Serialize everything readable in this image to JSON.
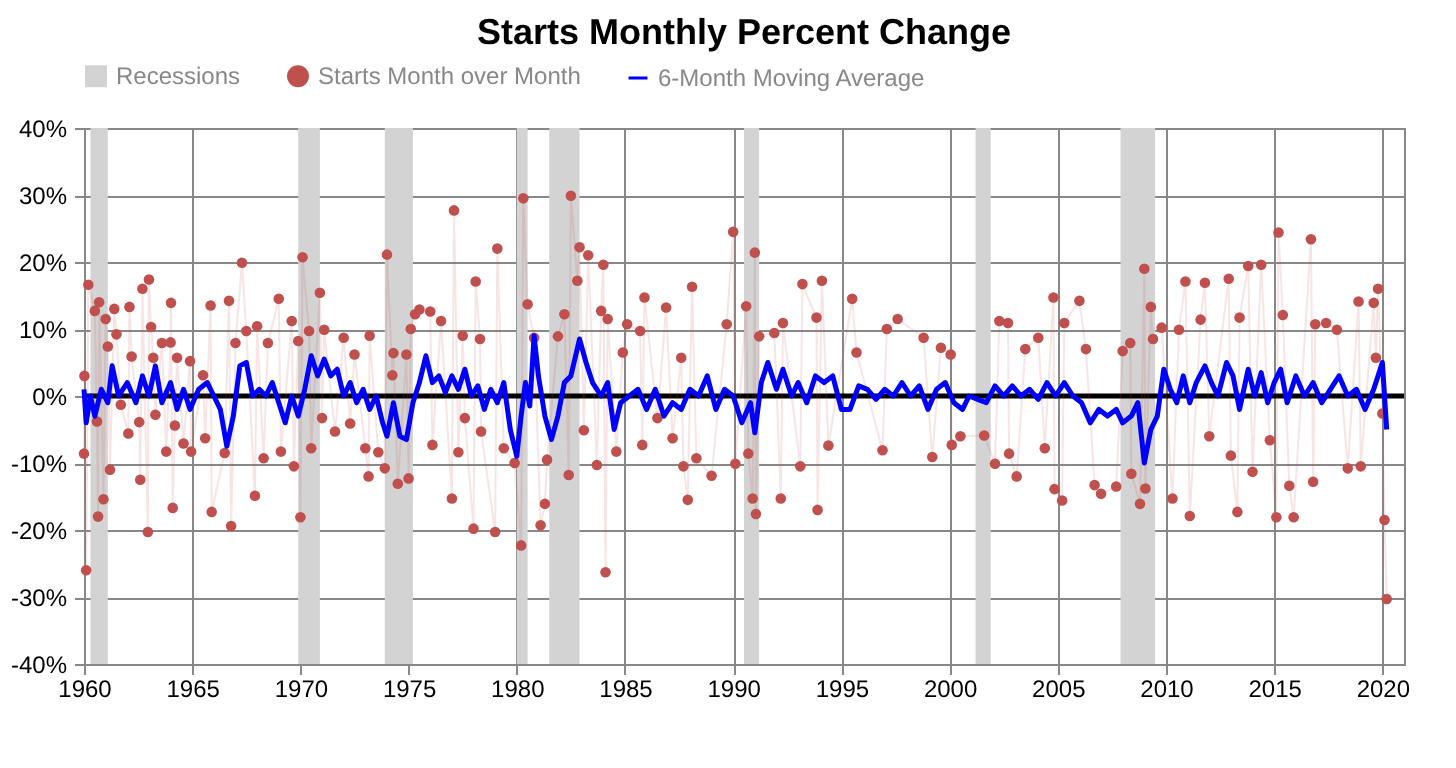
{
  "chart_data": {
    "type": "line",
    "title": "Starts Monthly Percent Change",
    "xlim": [
      1960,
      2021
    ],
    "xticks": [
      1960,
      1965,
      1970,
      1975,
      1980,
      1985,
      1990,
      1995,
      2000,
      2005,
      2010,
      2015,
      2020
    ],
    "ylim": [
      -40,
      40
    ],
    "yticks": [
      {
        "value": -40,
        "label": "-40%"
      },
      {
        "value": -30,
        "label": "-30%"
      },
      {
        "value": -20,
        "label": "-20%"
      },
      {
        "value": -10,
        "label": "-10%"
      },
      {
        "value": 0,
        "label": "0%"
      },
      {
        "value": 10,
        "label": "10%"
      },
      {
        "value": 20,
        "label": "20%"
      },
      {
        "value": 30,
        "label": "30%"
      },
      {
        "value": 40,
        "label": "40%"
      }
    ],
    "grid": true,
    "legend": "top",
    "bands": [
      {
        "axis": "x",
        "from": 1960.3,
        "to": 1961.1,
        "label": "Recessions",
        "color": "#d3d3d3"
      },
      {
        "axis": "x",
        "from": 1969.9,
        "to": 1970.9,
        "color": "#d3d3d3"
      },
      {
        "axis": "x",
        "from": 1973.9,
        "to": 1975.2,
        "color": "#d3d3d3"
      },
      {
        "axis": "x",
        "from": 1980.0,
        "to": 1980.5,
        "color": "#d3d3d3"
      },
      {
        "axis": "x",
        "from": 1981.5,
        "to": 1982.9,
        "color": "#d3d3d3"
      },
      {
        "axis": "x",
        "from": 1990.5,
        "to": 1991.2,
        "color": "#d3d3d3"
      },
      {
        "axis": "x",
        "from": 2001.2,
        "to": 2001.9,
        "color": "#d3d3d3"
      },
      {
        "axis": "x",
        "from": 2007.9,
        "to": 2009.5,
        "color": "#d3d3d3"
      }
    ],
    "ref_lines": [
      {
        "axis": "y",
        "value": 0,
        "color": "#000000"
      }
    ],
    "series": [
      {
        "name": "Starts Month over Month",
        "marker": "circle",
        "color": "#c0504d",
        "x": [
          1960.0,
          1960.02,
          1960.1,
          1960.2,
          1960.5,
          1960.6,
          1960.65,
          1960.7,
          1960.9,
          1961.0,
          1961.1,
          1961.2,
          1961.4,
          1961.5,
          1961.7,
          1962.05,
          1962.1,
          1962.2,
          1962.55,
          1962.6,
          1962.7,
          1962.95,
          1963.0,
          1963.1,
          1963.2,
          1963.3,
          1963.6,
          1963.8,
          1964.0,
          1964.02,
          1964.1,
          1964.2,
          1964.3,
          1964.6,
          1964.9,
          1964.95,
          1965.5,
          1965.6,
          1965.85,
          1965.9,
          1966.5,
          1966.7,
          1966.8,
          1967.0,
          1967.3,
          1967.5,
          1967.9,
          1968.0,
          1968.3,
          1968.5,
          1969.0,
          1969.1,
          1969.6,
          1969.7,
          1969.9,
          1970.0,
          1970.1,
          1970.4,
          1970.5,
          1970.9,
          1971.0,
          1971.1,
          1971.6,
          1972.0,
          1972.3,
          1972.5,
          1973.0,
          1973.15,
          1973.2,
          1973.6,
          1973.9,
          1974.0,
          1974.25,
          1974.3,
          1974.5,
          1974.9,
          1975.0,
          1975.1,
          1975.3,
          1975.5,
          1976.0,
          1976.1,
          1976.5,
          1977.0,
          1977.1,
          1977.3,
          1977.5,
          1977.6,
          1978.0,
          1978.1,
          1978.3,
          1978.35,
          1979.0,
          1979.1,
          1979.4,
          1979.9,
          1980.2,
          1980.3,
          1980.5,
          1980.8,
          1981.1,
          1981.3,
          1981.4,
          1981.9,
          1982.2,
          1982.4,
          1982.5,
          1982.8,
          1982.9,
          1983.1,
          1983.3,
          1983.7,
          1983.9,
          1984.0,
          1984.1,
          1984.2,
          1984.6,
          1984.9,
          1985.1,
          1985.7,
          1985.8,
          1985.9,
          1986.5,
          1986.9,
          1987.2,
          1987.6,
          1987.7,
          1987.9,
          1988.1,
          1988.3,
          1989.0,
          1989.7,
          1990.0,
          1990.1,
          1990.6,
          1990.7,
          1990.9,
          1991.0,
          1991.05,
          1991.2,
          1991.9,
          1992.2,
          1992.3,
          1993.1,
          1993.2,
          1993.85,
          1993.9,
          1994.1,
          1994.4,
          1995.5,
          1995.7,
          1996.9,
          1997.1,
          1997.6,
          1998.8,
          1999.2,
          1999.6,
          2000.05,
          2000.1,
          2000.5,
          2001.6,
          2002.1,
          2002.3,
          2002.7,
          2002.75,
          2003.1,
          2003.5,
          2004.1,
          2004.4,
          2004.8,
          2004.85,
          2005.2,
          2005.3,
          2006.0,
          2006.3,
          2006.7,
          2007.0,
          2007.7,
          2008.0,
          2008.35,
          2008.4,
          2008.8,
          2009.0,
          2009.05,
          2009.3,
          2009.4,
          2009.8,
          2010.3,
          2010.6,
          2010.9,
          2011.1,
          2011.6,
          2011.8,
          2012.0,
          2012.9,
          2013.0,
          2013.3,
          2013.4,
          2013.8,
          2014.0,
          2014.4,
          2014.8,
          2015.1,
          2015.2,
          2015.4,
          2015.7,
          2015.9,
          2016.7,
          2016.8,
          2016.9,
          2017.4,
          2017.9,
          2018.4,
          2018.9,
          2019.0,
          2019.6,
          2019.7,
          2019.8,
          2020.0,
          2020.1,
          2020.2
        ],
        "values": [
          -8.6,
          3,
          -26,
          16.6,
          12.7,
          -3.8,
          -18,
          14,
          -15.4,
          11.5,
          7.4,
          -11,
          13,
          9.2,
          -1.3,
          -5.6,
          13.3,
          5.9,
          -3.9,
          -12.5,
          16,
          -20.3,
          17.4,
          10.3,
          5.7,
          -2.8,
          7.9,
          -8.3,
          8,
          13.9,
          -16.7,
          -4.4,
          5.7,
          -7.1,
          5.2,
          -8.3,
          3.1,
          -6.3,
          13.5,
          -17.3,
          -8.5,
          14.2,
          -19.4,
          7.9,
          19.9,
          9.7,
          -14.9,
          10.4,
          -9.3,
          7.9,
          14.5,
          -8.3,
          11.2,
          -10.5,
          8.2,
          -18.1,
          20.7,
          9.7,
          -7.8,
          15.4,
          -3.3,
          9.9,
          -5.3,
          8.7,
          -4.1,
          6.2,
          -7.8,
          -12,
          9,
          -8.4,
          -10.8,
          21.1,
          3.1,
          6.4,
          -13.1,
          6.2,
          -12.3,
          10,
          12.2,
          12.9,
          12.6,
          -7.3,
          11.2,
          -15.3,
          27.7,
          -8.4,
          9,
          -3.3,
          -19.8,
          17.1,
          8.5,
          -5.3,
          -20.3,
          22,
          -7.8,
          -10,
          -22.3,
          29.5,
          13.7,
          8.7,
          -19.3,
          -16.1,
          -9.5,
          8.9,
          12.2,
          -11.8,
          29.9,
          17.2,
          22.2,
          -5.1,
          21,
          -10.3,
          12.7,
          19.6,
          -26.3,
          11.5,
          -8.3,
          6.5,
          10.7,
          9.7,
          -7.3,
          14.7,
          -3.3,
          13.2,
          -6.3,
          5.7,
          -10.5,
          -15.5,
          16.3,
          -9.3,
          -11.9,
          10.7,
          24.5,
          -10.1,
          13.4,
          -8.6,
          -15.3,
          21.4,
          -17.6,
          8.9,
          9.4,
          -15.3,
          10.9,
          -10.5,
          16.7,
          11.7,
          -17,
          17.2,
          -7.4,
          14.5,
          6.5,
          -8.1,
          10,
          11.5,
          8.7,
          -9.1,
          7.2,
          6.2,
          -7.3,
          -6,
          -5.9,
          -10.1,
          11.2,
          10.9,
          -8.6,
          -12,
          7,
          8.7,
          -7.8,
          14.7,
          -13.9,
          -15.6,
          10.9,
          14.2,
          7,
          -13.3,
          -14.6,
          -13.5,
          6.7,
          7.9,
          -11.6,
          -16.1,
          19,
          -13.8,
          13.3,
          8.5,
          10.2,
          -15.3,
          9.9,
          17.1,
          -17.9,
          11.4,
          16.9,
          -6,
          17.5,
          -8.9,
          -17.3,
          11.7,
          19.4,
          -11.3,
          19.6,
          -6.6,
          -18.1,
          24.4,
          12.1,
          -13.4,
          -18.1,
          23.4,
          -12.8,
          10.7,
          10.9,
          9.9,
          -10.8,
          14.1,
          -10.5,
          13.9,
          5.7,
          16,
          -2.6,
          -18.5,
          -30.3
        ]
      },
      {
        "name": "6-Month Moving Average",
        "marker": "none",
        "color": "#0000ff",
        "x": [
          1960.0,
          1960.1,
          1960.3,
          1960.5,
          1960.8,
          1961.1,
          1961.3,
          1961.6,
          1962.0,
          1962.4,
          1962.7,
          1963.0,
          1963.3,
          1963.6,
          1964.0,
          1964.3,
          1964.6,
          1964.9,
          1965.3,
          1965.7,
          1966.0,
          1966.3,
          1966.6,
          1966.9,
          1967.2,
          1967.5,
          1967.8,
          1968.1,
          1968.4,
          1968.7,
          1969.0,
          1969.3,
          1969.6,
          1969.9,
          1970.2,
          1970.5,
          1970.8,
          1971.1,
          1971.4,
          1971.7,
          1972.0,
          1972.3,
          1972.6,
          1972.9,
          1973.2,
          1973.5,
          1973.8,
          1974.0,
          1974.3,
          1974.6,
          1974.9,
          1975.2,
          1975.5,
          1975.8,
          1976.1,
          1976.4,
          1976.7,
          1977.0,
          1977.3,
          1977.6,
          1977.9,
          1978.2,
          1978.5,
          1978.8,
          1979.1,
          1979.4,
          1979.7,
          1980.0,
          1980.2,
          1980.4,
          1980.6,
          1980.8,
          1981.0,
          1981.3,
          1981.6,
          1981.9,
          1982.2,
          1982.5,
          1982.9,
          1983.2,
          1983.5,
          1983.9,
          1984.2,
          1984.5,
          1984.8,
          1985.2,
          1985.6,
          1986.0,
          1986.4,
          1986.8,
          1987.2,
          1987.6,
          1988.0,
          1988.4,
          1988.8,
          1989.2,
          1989.6,
          1990.0,
          1990.4,
          1990.8,
          1991.0,
          1991.3,
          1991.6,
          1992.0,
          1992.3,
          1992.7,
          1993.0,
          1993.4,
          1993.8,
          1994.2,
          1994.6,
          1995.0,
          1995.4,
          1995.8,
          1996.2,
          1996.6,
          1997.0,
          1997.4,
          1997.8,
          1998.2,
          1998.6,
          1999.0,
          1999.4,
          1999.8,
          2000.2,
          2000.6,
          2000.9,
          2001.3,
          2001.7,
          2002.1,
          2002.5,
          2002.9,
          2003.3,
          2003.7,
          2004.1,
          2004.5,
          2004.9,
          2005.3,
          2005.7,
          2006.1,
          2006.5,
          2006.9,
          2007.3,
          2007.7,
          2008.0,
          2008.4,
          2008.7,
          2009.0,
          2009.3,
          2009.6,
          2009.9,
          2010.2,
          2010.5,
          2010.8,
          2011.1,
          2011.4,
          2011.8,
          2012.1,
          2012.4,
          2012.8,
          2013.1,
          2013.4,
          2013.8,
          2014.1,
          2014.4,
          2014.7,
          2015.0,
          2015.3,
          2015.6,
          2016.0,
          2016.4,
          2016.8,
          2017.2,
          2017.6,
          2018.0,
          2018.4,
          2018.8,
          2019.2,
          2019.6,
          2020.0,
          2020.2
        ],
        "values": [
          1,
          -4,
          0,
          -3,
          1,
          -1,
          4.5,
          0,
          2,
          -1,
          3,
          0,
          4.5,
          -1,
          2,
          -2,
          1,
          -2,
          1,
          2,
          0,
          -2,
          -7.5,
          -3,
          4.5,
          5,
          0,
          1,
          0,
          2,
          -1,
          -4,
          0,
          -3,
          1,
          6,
          3,
          5.5,
          3,
          4,
          0,
          2,
          -1,
          1,
          -2,
          0,
          -4,
          -6,
          -1,
          -6,
          -6.5,
          -1,
          2,
          6,
          2,
          3,
          0.5,
          3,
          1,
          4,
          0,
          1.5,
          -2,
          1,
          -1,
          2,
          -5,
          -9,
          -3,
          2,
          -1.5,
          9,
          3,
          -3,
          -6.5,
          -3,
          2,
          3,
          8.5,
          5,
          2,
          0,
          2,
          -5,
          -1,
          0,
          1,
          -2,
          1,
          -3,
          -1,
          -2,
          1,
          0,
          3,
          -2,
          1,
          0,
          -4,
          -1,
          -5.5,
          2,
          5,
          1,
          4,
          0,
          2,
          -1,
          3,
          2,
          3,
          -2,
          -2,
          1.5,
          1,
          -0.5,
          1,
          0,
          2,
          0,
          1.5,
          -2,
          1,
          2,
          -1,
          -2,
          0,
          -0.5,
          -1,
          1.5,
          0,
          1.5,
          0,
          1,
          -0.5,
          2,
          0,
          2,
          0,
          -1,
          -4,
          -2,
          -3,
          -2,
          -4,
          -3,
          -1,
          -10,
          -5,
          -3,
          4,
          1,
          -1,
          3,
          -1,
          2,
          4.5,
          2,
          0,
          5,
          3,
          -2,
          4,
          0,
          3.5,
          -1,
          2,
          4,
          -1,
          3,
          0,
          2,
          -1,
          1,
          3,
          0,
          1,
          -2,
          1,
          5,
          -5
        ]
      }
    ]
  }
}
